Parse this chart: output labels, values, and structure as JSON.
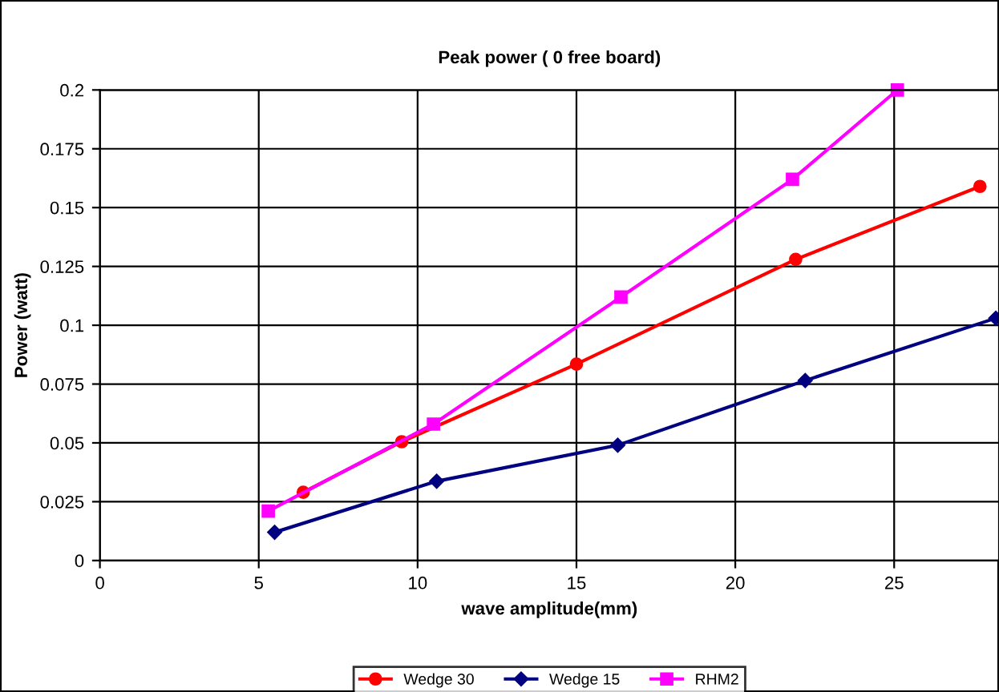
{
  "chart_data": {
    "type": "line",
    "title": "Peak power ( 0 free board)",
    "xlabel": "wave amplitude(mm)",
    "ylabel": "Power (watt)",
    "xlim": [
      0,
      28.3
    ],
    "xticks": [
      0,
      5,
      10,
      15,
      20,
      25
    ],
    "ylim": [
      0,
      0.2
    ],
    "yticks": [
      0,
      0.025,
      0.05,
      0.075,
      0.1,
      0.125,
      0.15,
      0.175,
      0.2
    ],
    "grid": true,
    "legend": "bottom",
    "line_style": "solid",
    "series": [
      {
        "name": "Wedge 30",
        "color": "#ff0000",
        "marker": "circle",
        "x": [
          6.4,
          9.5,
          15.0,
          21.9,
          27.7
        ],
        "values": [
          0.029,
          0.0505,
          0.0835,
          0.128,
          0.159
        ]
      },
      {
        "name": "Wedge 15",
        "color": "#000080",
        "marker": "diamond",
        "x": [
          5.5,
          10.6,
          16.3,
          22.2,
          28.2
        ],
        "values": [
          0.012,
          0.0337,
          0.049,
          0.0765,
          0.103
        ]
      },
      {
        "name": "RHM2",
        "color": "#ff00ff",
        "marker": "square",
        "x": [
          5.3,
          10.5,
          16.4,
          21.8,
          25.1
        ],
        "values": [
          0.021,
          0.058,
          0.112,
          0.162,
          0.2
        ]
      }
    ]
  }
}
